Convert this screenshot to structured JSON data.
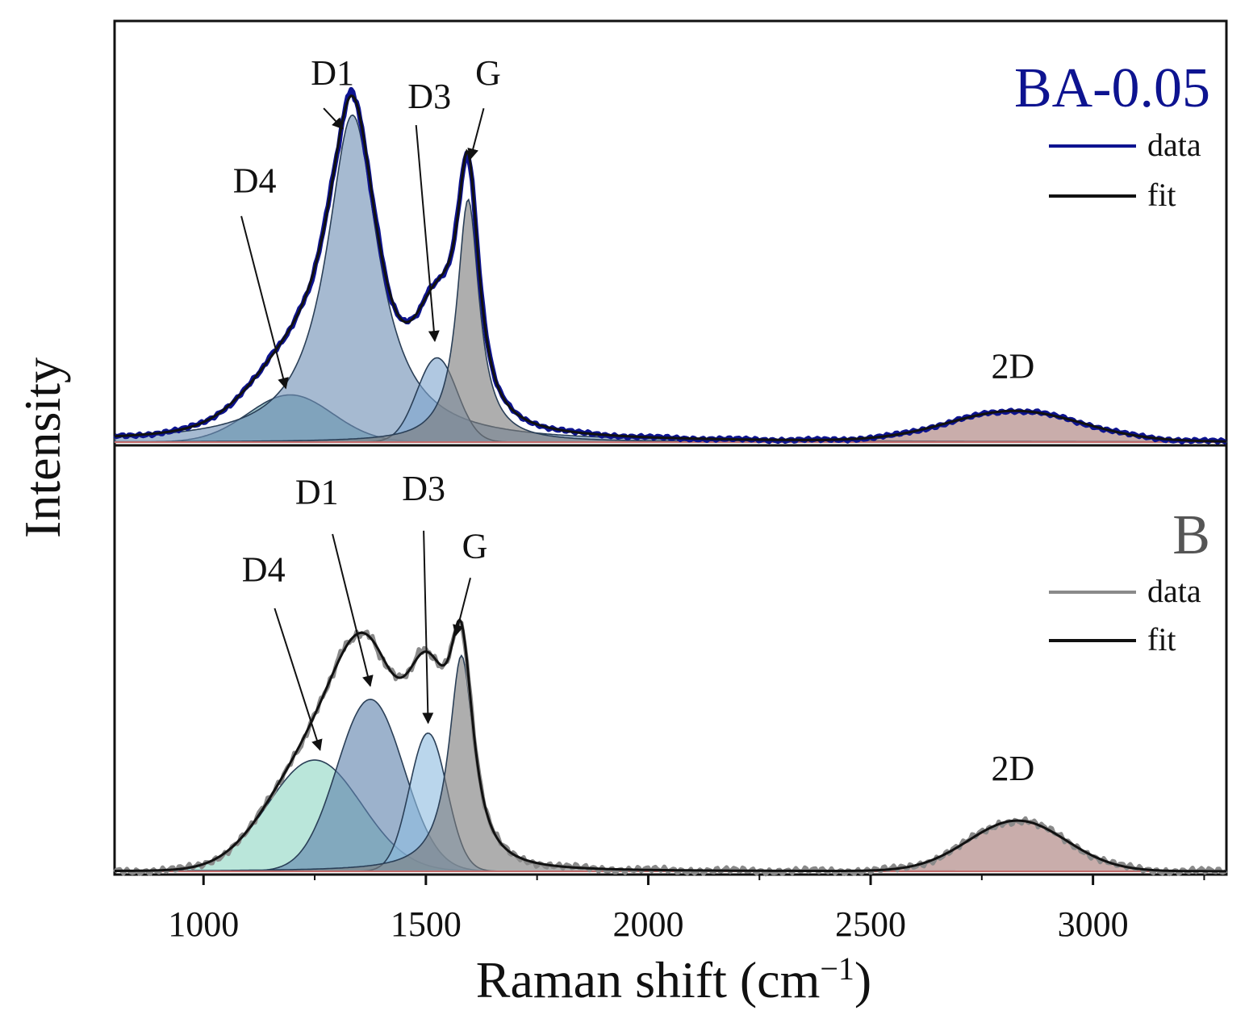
{
  "chart_data": {
    "type": "line",
    "title": "",
    "xlabel": "Raman shift (cm",
    "xlabel_superscript": "−1",
    "xlabel_close": ")",
    "ylabel": "Intensity",
    "xlim": [
      800,
      3300
    ],
    "x_ticks": [
      1000,
      1500,
      2000,
      2500,
      3000
    ],
    "x_tick_labels": [
      "1000",
      "1500",
      "2000",
      "2500",
      "3000"
    ],
    "grid": false,
    "colors": {
      "ba_data": "#0d1390",
      "b_data": "#8a8a8a",
      "fit": "#111111",
      "d4_top": "#5f9ea8",
      "d1_top": "#6f8fb4",
      "d3_top": "#7fa6cf",
      "g": "#7c7c7c",
      "band_2d": "#a87a78",
      "d4_bottom": "#8fd6c4",
      "d1_bottom": "#5f82ad",
      "d3_bottom": "#8fbde0"
    },
    "panels": [
      {
        "sample": "BA-0.05",
        "label_color": "#0d1390",
        "legend": [
          "data",
          "fit"
        ],
        "ylim": [
          0,
          1.1
        ],
        "components": [
          {
            "name": "D4",
            "center": 1195,
            "amplitude": 0.14,
            "width": 95,
            "shape": "gaussian"
          },
          {
            "name": "D1",
            "center": 1335,
            "amplitude": 0.97,
            "width": 70,
            "shape": "lorentzian"
          },
          {
            "name": "D3",
            "center": 1525,
            "amplitude": 0.25,
            "width": 45,
            "shape": "gaussian"
          },
          {
            "name": "G",
            "center": 1595,
            "amplitude": 0.72,
            "width": 30,
            "shape": "lorentzian"
          },
          {
            "name": "2D",
            "center": 2825,
            "amplitude": 0.09,
            "width": 150,
            "shape": "gaussian"
          }
        ],
        "label_points": [
          {
            "name": "D1",
            "x": 1290,
            "y": 1.06
          },
          {
            "name": "D3",
            "x": 1508,
            "y": 0.99
          },
          {
            "name": "G",
            "x": 1640,
            "y": 1.06
          },
          {
            "name": "D4",
            "x": 1115,
            "y": 0.74
          },
          {
            "name": "2D",
            "x": 2820,
            "y": 0.19
          }
        ],
        "arrows": [
          {
            "label": "D1",
            "from": [
              1270,
              0.99
            ],
            "to": [
              1313,
              0.93
            ]
          },
          {
            "label": "D3",
            "from": [
              1478,
              0.94
            ],
            "to": [
              1520,
              0.3
            ]
          },
          {
            "label": "G",
            "from": [
              1630,
              0.99
            ],
            "to": [
              1600,
              0.84
            ]
          },
          {
            "label": "D4",
            "from": [
              1085,
              0.67
            ],
            "to": [
              1185,
              0.16
            ]
          }
        ]
      },
      {
        "sample": "B",
        "label_color": "#555555",
        "legend": [
          "data",
          "fit"
        ],
        "ylim": [
          0,
          1.1
        ],
        "components": [
          {
            "name": "D4",
            "center": 1250,
            "amplitude": 0.33,
            "width": 105,
            "shape": "gaussian"
          },
          {
            "name": "D1",
            "center": 1375,
            "amplitude": 0.51,
            "width": 75,
            "shape": "gaussian"
          },
          {
            "name": "D3",
            "center": 1505,
            "amplitude": 0.41,
            "width": 42,
            "shape": "gaussian"
          },
          {
            "name": "G",
            "center": 1580,
            "amplitude": 0.64,
            "width": 34,
            "shape": "lorentzian"
          },
          {
            "name": "2D",
            "center": 2830,
            "amplitude": 0.15,
            "width": 110,
            "shape": "gaussian"
          }
        ],
        "label_points": [
          {
            "name": "D1",
            "x": 1255,
            "y": 1.09
          },
          {
            "name": "D3",
            "x": 1495,
            "y": 1.1
          },
          {
            "name": "G",
            "x": 1610,
            "y": 0.93
          },
          {
            "name": "D4",
            "x": 1135,
            "y": 0.86
          },
          {
            "name": "2D",
            "x": 2820,
            "y": 0.27
          }
        ],
        "arrows": [
          {
            "label": "D1",
            "from": [
              1290,
              1.0
            ],
            "to": [
              1375,
              0.55
            ]
          },
          {
            "label": "D3",
            "from": [
              1495,
              1.01
            ],
            "to": [
              1505,
              0.44
            ]
          },
          {
            "label": "G",
            "from": [
              1600,
              0.87
            ],
            "to": [
              1567,
              0.7
            ]
          },
          {
            "label": "D4",
            "from": [
              1160,
              0.78
            ],
            "to": [
              1262,
              0.36
            ]
          }
        ]
      }
    ]
  }
}
